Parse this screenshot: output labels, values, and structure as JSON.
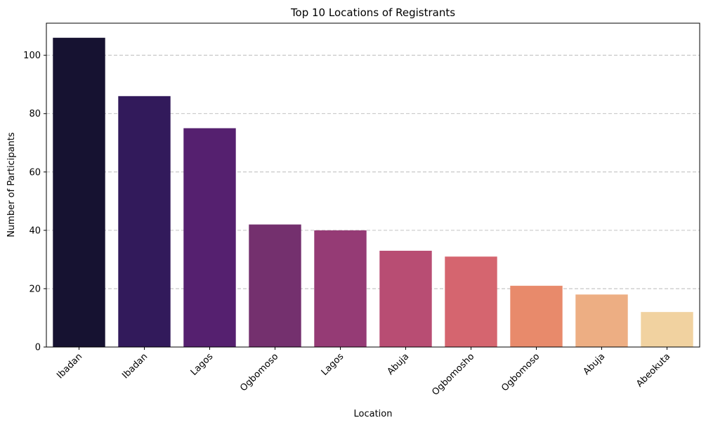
{
  "chart_data": {
    "type": "bar",
    "title": "Top 10 Locations of Registrants",
    "xlabel": "Location",
    "ylabel": "Number of Participants",
    "categories": [
      "Ibadan",
      "Ibadan",
      "Lagos",
      "Ogbomoso",
      "Lagos",
      "Abuja",
      "Ogbomosho",
      "Ogbomoso",
      "Abuja",
      "Abeokuta"
    ],
    "values": [
      106,
      86,
      75,
      42,
      40,
      33,
      31,
      21,
      18,
      12
    ],
    "colors": [
      "#161231",
      "#321a5b",
      "#55206f",
      "#74306e",
      "#953b75",
      "#b84d73",
      "#d5656f",
      "#e88a6b",
      "#edae83",
      "#f1d2a0"
    ],
    "ylim": [
      0,
      111
    ],
    "yticks": [
      0,
      20,
      40,
      60,
      80,
      100
    ],
    "grid": "y-dashed",
    "tick_rotation": 45
  }
}
